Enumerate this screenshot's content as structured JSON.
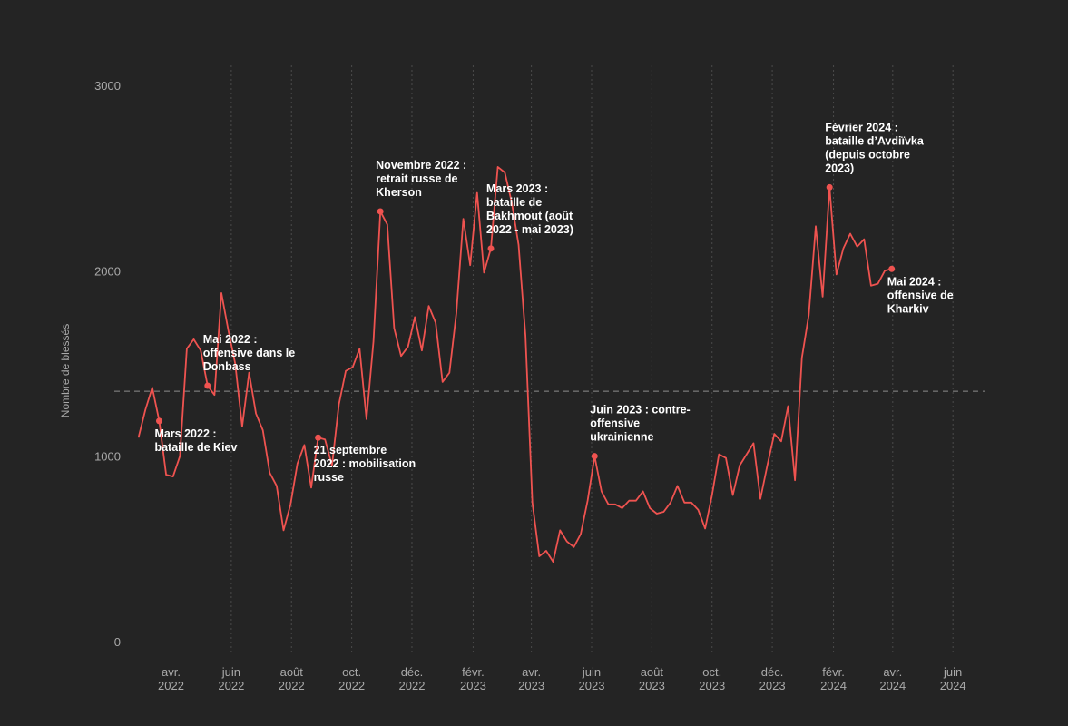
{
  "chart_data": {
    "type": "line",
    "ylabel": "Nombre de blessés",
    "ylim": [
      0,
      3000
    ],
    "yticks": [
      0,
      1000,
      2000,
      3000
    ],
    "xlim": [
      "2022-02-20",
      "2024-07-03"
    ],
    "grid": "vertical dotted lines at x ticks",
    "reference_line_y": 1350,
    "x_ticks": [
      {
        "date": "2022-04-01",
        "label": [
          "avr.",
          "2022"
        ]
      },
      {
        "date": "2022-06-01",
        "label": [
          "juin",
          "2022"
        ]
      },
      {
        "date": "2022-08-01",
        "label": [
          "août",
          "2022"
        ]
      },
      {
        "date": "2022-10-01",
        "label": [
          "oct.",
          "2022"
        ]
      },
      {
        "date": "2022-12-01",
        "label": [
          "déc.",
          "2022"
        ]
      },
      {
        "date": "2023-02-01",
        "label": [
          "févr.",
          "2023"
        ]
      },
      {
        "date": "2023-04-01",
        "label": [
          "avr.",
          "2023"
        ]
      },
      {
        "date": "2023-06-01",
        "label": [
          "juin",
          "2023"
        ]
      },
      {
        "date": "2023-08-01",
        "label": [
          "août",
          "2023"
        ]
      },
      {
        "date": "2023-10-01",
        "label": [
          "oct.",
          "2023"
        ]
      },
      {
        "date": "2023-12-01",
        "label": [
          "déc.",
          "2023"
        ]
      },
      {
        "date": "2024-02-01",
        "label": [
          "févr.",
          "2024"
        ]
      },
      {
        "date": "2024-04-01",
        "label": [
          "avr.",
          "2024"
        ]
      },
      {
        "date": "2024-06-01",
        "label": [
          "juin",
          "2024"
        ]
      }
    ],
    "series": [
      {
        "color": "#ef5350",
        "points": [
          [
            "2022-02-27",
            1100
          ],
          [
            "2022-03-06",
            1250
          ],
          [
            "2022-03-13",
            1370
          ],
          [
            "2022-03-20",
            1190
          ],
          [
            "2022-03-27",
            900
          ],
          [
            "2022-04-03",
            890
          ],
          [
            "2022-04-10",
            1000
          ],
          [
            "2022-04-17",
            1580
          ],
          [
            "2022-04-24",
            1630
          ],
          [
            "2022-05-01",
            1570
          ],
          [
            "2022-05-08",
            1380
          ],
          [
            "2022-05-15",
            1330
          ],
          [
            "2022-05-22",
            1880
          ],
          [
            "2022-05-29",
            1680
          ],
          [
            "2022-06-05",
            1500
          ],
          [
            "2022-06-12",
            1160
          ],
          [
            "2022-06-19",
            1450
          ],
          [
            "2022-06-26",
            1230
          ],
          [
            "2022-07-03",
            1140
          ],
          [
            "2022-07-10",
            910
          ],
          [
            "2022-07-17",
            840
          ],
          [
            "2022-07-24",
            600
          ],
          [
            "2022-07-31",
            740
          ],
          [
            "2022-08-07",
            960
          ],
          [
            "2022-08-14",
            1060
          ],
          [
            "2022-08-21",
            830
          ],
          [
            "2022-08-28",
            1100
          ],
          [
            "2022-09-04",
            1090
          ],
          [
            "2022-09-11",
            950
          ],
          [
            "2022-09-18",
            1280
          ],
          [
            "2022-09-25",
            1460
          ],
          [
            "2022-10-02",
            1480
          ],
          [
            "2022-10-09",
            1580
          ],
          [
            "2022-10-16",
            1200
          ],
          [
            "2022-10-23",
            1620
          ],
          [
            "2022-10-30",
            2320
          ],
          [
            "2022-11-06",
            2250
          ],
          [
            "2022-11-13",
            1690
          ],
          [
            "2022-11-20",
            1540
          ],
          [
            "2022-11-27",
            1590
          ],
          [
            "2022-12-04",
            1750
          ],
          [
            "2022-12-11",
            1570
          ],
          [
            "2022-12-18",
            1810
          ],
          [
            "2022-12-25",
            1720
          ],
          [
            "2023-01-01",
            1400
          ],
          [
            "2023-01-08",
            1450
          ],
          [
            "2023-01-15",
            1770
          ],
          [
            "2023-01-22",
            2280
          ],
          [
            "2023-01-29",
            2030
          ],
          [
            "2023-02-05",
            2420
          ],
          [
            "2023-02-12",
            1990
          ],
          [
            "2023-02-19",
            2120
          ],
          [
            "2023-02-26",
            2560
          ],
          [
            "2023-03-05",
            2530
          ],
          [
            "2023-03-12",
            2370
          ],
          [
            "2023-03-19",
            2140
          ],
          [
            "2023-03-26",
            1650
          ],
          [
            "2023-04-02",
            750
          ],
          [
            "2023-04-09",
            460
          ],
          [
            "2023-04-16",
            490
          ],
          [
            "2023-04-23",
            430
          ],
          [
            "2023-04-30",
            600
          ],
          [
            "2023-05-07",
            540
          ],
          [
            "2023-05-14",
            510
          ],
          [
            "2023-05-21",
            580
          ],
          [
            "2023-05-28",
            760
          ],
          [
            "2023-06-04",
            1000
          ],
          [
            "2023-06-11",
            810
          ],
          [
            "2023-06-18",
            740
          ],
          [
            "2023-06-25",
            740
          ],
          [
            "2023-07-02",
            720
          ],
          [
            "2023-07-09",
            760
          ],
          [
            "2023-07-16",
            760
          ],
          [
            "2023-07-23",
            810
          ],
          [
            "2023-07-30",
            720
          ],
          [
            "2023-08-06",
            690
          ],
          [
            "2023-08-13",
            700
          ],
          [
            "2023-08-20",
            750
          ],
          [
            "2023-08-27",
            840
          ],
          [
            "2023-09-03",
            750
          ],
          [
            "2023-09-10",
            750
          ],
          [
            "2023-09-17",
            710
          ],
          [
            "2023-09-24",
            610
          ],
          [
            "2023-10-01",
            790
          ],
          [
            "2023-10-08",
            1010
          ],
          [
            "2023-10-15",
            990
          ],
          [
            "2023-10-22",
            790
          ],
          [
            "2023-10-29",
            950
          ],
          [
            "2023-11-05",
            1010
          ],
          [
            "2023-11-12",
            1070
          ],
          [
            "2023-11-19",
            770
          ],
          [
            "2023-11-26",
            950
          ],
          [
            "2023-12-03",
            1120
          ],
          [
            "2023-12-10",
            1080
          ],
          [
            "2023-12-17",
            1270
          ],
          [
            "2023-12-24",
            870
          ],
          [
            "2023-12-31",
            1530
          ],
          [
            "2024-01-07",
            1760
          ],
          [
            "2024-01-14",
            2240
          ],
          [
            "2024-01-21",
            1860
          ],
          [
            "2024-01-28",
            2450
          ],
          [
            "2024-02-04",
            1980
          ],
          [
            "2024-02-11",
            2120
          ],
          [
            "2024-02-18",
            2200
          ],
          [
            "2024-02-25",
            2130
          ],
          [
            "2024-03-03",
            2170
          ],
          [
            "2024-03-10",
            1920
          ],
          [
            "2024-03-17",
            1930
          ],
          [
            "2024-03-24",
            2000
          ],
          [
            "2024-03-31",
            2010
          ]
        ]
      }
    ],
    "annotations": [
      {
        "date": "2022-03-20",
        "value": 1190,
        "lines": [
          "Mars 2022 :",
          "bataille de Kiev"
        ],
        "anchor": "below"
      },
      {
        "date": "2022-05-08",
        "value": 1380,
        "lines": [
          "Mai 2022 :",
          "offensive dans le",
          "Donbass"
        ],
        "anchor": "above"
      },
      {
        "date": "2022-08-28",
        "value": 1100,
        "lines": [
          "21 septembre",
          "2022 : mobilisation",
          "russe"
        ],
        "anchor": "below"
      },
      {
        "date": "2022-10-30",
        "value": 2320,
        "lines": [
          "Novembre 2022 :",
          "retrait russe de",
          "Kherson"
        ],
        "anchor": "above"
      },
      {
        "date": "2023-02-19",
        "value": 2120,
        "lines": [
          "Mars 2023 :",
          "bataille de",
          "Bakhmout (août",
          "2022 - mai 2023)"
        ],
        "anchor": "above"
      },
      {
        "date": "2023-06-04",
        "value": 1000,
        "lines": [
          "Juin 2023 : contre-",
          "offensive",
          "ukrainienne"
        ],
        "anchor": "above"
      },
      {
        "date": "2024-01-28",
        "value": 2450,
        "lines": [
          "Février 2024 :",
          "bataille d’Avdiïvka",
          "(depuis octobre",
          "2023)"
        ],
        "anchor": "above"
      },
      {
        "date": "2024-03-31",
        "value": 2010,
        "lines": [
          "Mai 2024 :",
          "offensive de",
          "Kharkiv"
        ],
        "anchor": "below"
      }
    ]
  }
}
